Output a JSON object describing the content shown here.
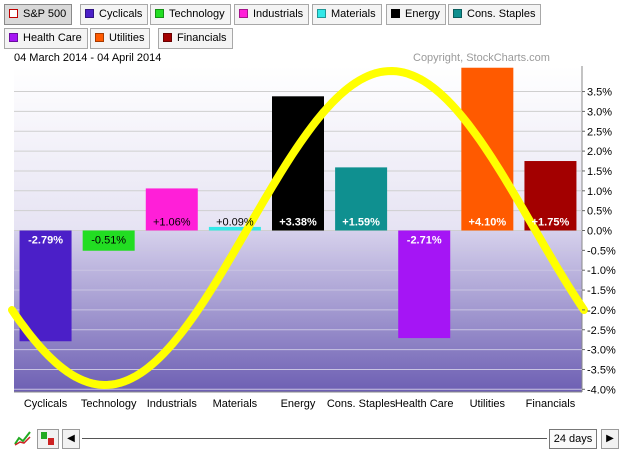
{
  "legend": [
    {
      "label": "S&P 500",
      "color": "#c00000",
      "hollow": true,
      "selected": true
    },
    {
      "label": "Cyclicals",
      "color": "#4b1fc8"
    },
    {
      "label": "Technology",
      "color": "#22dd22"
    },
    {
      "label": "Industrials",
      "color": "#ff1fd8"
    },
    {
      "label": "Materials",
      "color": "#33e8e8"
    },
    {
      "label": "Energy",
      "color": "#000000"
    },
    {
      "label": "Cons. Staples",
      "color": "#0f9090"
    },
    {
      "label": "Health Care",
      "color": "#a515f5"
    },
    {
      "label": "Utilities",
      "color": "#ff5a00"
    },
    {
      "label": "Financials",
      "color": "#a30000"
    }
  ],
  "header": {
    "date_range": "04 March 2014 - 04 April 2014",
    "copyright": "Copyright, StockCharts.com"
  },
  "chart_data": {
    "type": "bar",
    "categories": [
      "Cyclicals",
      "Technology",
      "Industrials",
      "Materials",
      "Energy",
      "Cons. Staples",
      "Health Care",
      "Utilities",
      "Financials"
    ],
    "values": [
      -2.79,
      -0.51,
      1.06,
      0.09,
      3.38,
      1.59,
      -2.71,
      4.1,
      1.75
    ],
    "labels": [
      "-2.79%",
      "-0.51%",
      "+1.06%",
      "+0.09%",
      "+3.38%",
      "+1.59%",
      "-2.71%",
      "+4.10%",
      "+1.75%"
    ],
    "colors": [
      "#4b1fc8",
      "#22dd22",
      "#ff1fd8",
      "#33e8e8",
      "#000000",
      "#0f9090",
      "#a515f5",
      "#ff5a00",
      "#a30000"
    ],
    "y_ticks": [
      3.5,
      3.0,
      2.5,
      2.0,
      1.5,
      1.0,
      0.5,
      0.0,
      -0.5,
      -1.0,
      -1.5,
      -2.0,
      -2.5,
      -3.0,
      -3.5,
      -4.0
    ],
    "y_tick_labels": [
      "3.5%",
      "3.0%",
      "2.5%",
      "2.0%",
      "1.5%",
      "1.0%",
      "0.5%",
      "0.0%",
      "-0.5%",
      "-1.0%",
      "-1.5%",
      "-2.0%",
      "-2.5%",
      "-3.0%",
      "-3.5%",
      "-4.0%"
    ],
    "ylim": [
      -4.2,
      4.2
    ],
    "grid": true,
    "overlay_curve_color": "#ffff00"
  },
  "toolbar": {
    "period_label": "24 days",
    "prev_icon": "left-triangle-icon",
    "next_icon": "right-triangle-icon",
    "chart_icons": [
      "line-chart-icon",
      "bar-chart-icon"
    ]
  }
}
